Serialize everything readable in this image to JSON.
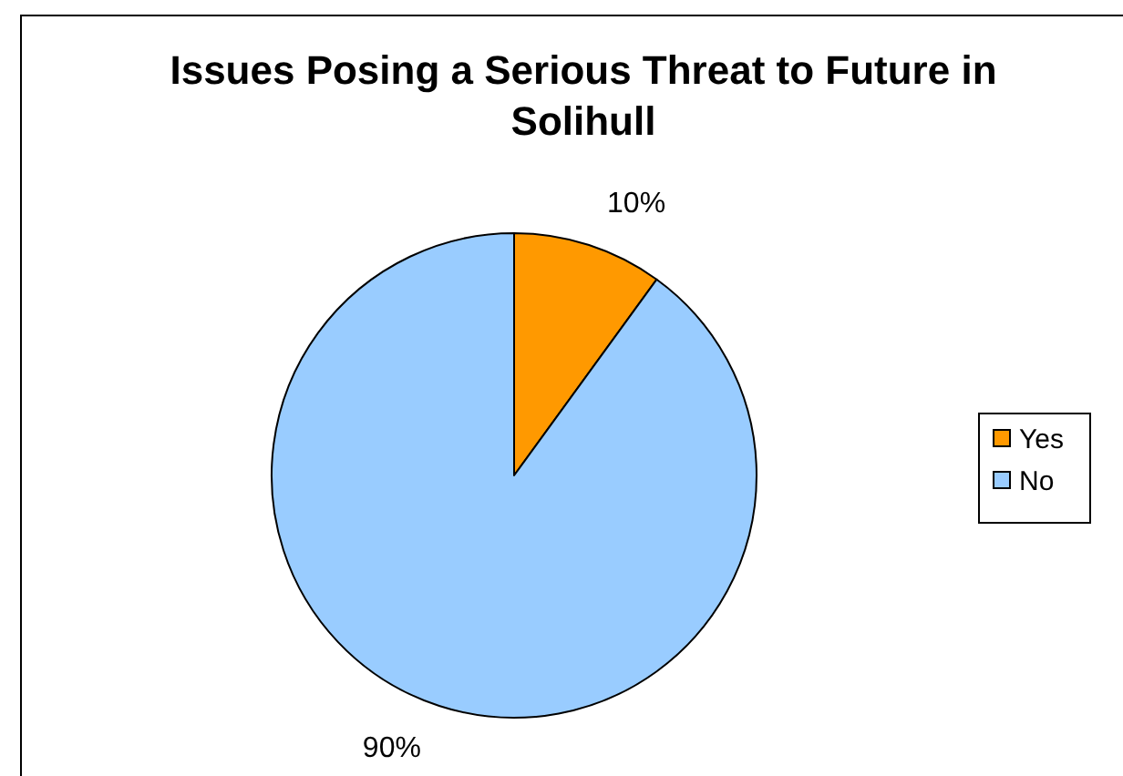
{
  "chart_data": {
    "type": "pie",
    "title": "Issues Posing a Serious Threat to Future in Solihull",
    "categories": [
      "Yes",
      "No"
    ],
    "values": [
      10,
      90
    ],
    "colors": [
      "#ff9900",
      "#99ccff"
    ],
    "value_labels": [
      "10%",
      "90%"
    ],
    "legend": "right"
  }
}
